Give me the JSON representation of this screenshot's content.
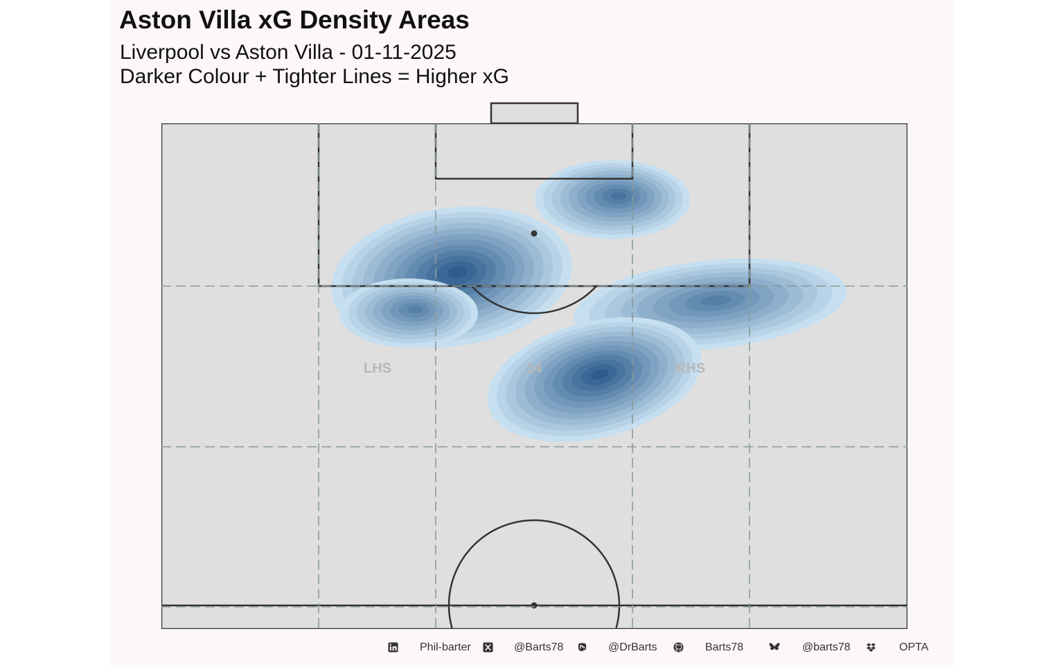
{
  "chart_data": {
    "type": "heatmap",
    "title": "Aston Villa xG Density Areas",
    "subtitle_lines": [
      "Liverpool vs Aston Villa - 01-11-2025",
      "Darker Colour + Tighter Lines = Higher xG"
    ],
    "zone_labels": [
      "LHS",
      "14",
      "RHS"
    ],
    "colors": {
      "pitch": "#dfdfdf",
      "background": "#fdf7f7",
      "lines": "#333333",
      "zone_lines": "#8a9a9a",
      "density_light": "#c6dff0",
      "density_dark": "#2c5b8c"
    },
    "density_clusters": [
      {
        "area": "left of penalty spot, edge of box",
        "intensity": "high"
      },
      {
        "area": "six-yard box, right of centre",
        "intensity": "medium"
      },
      {
        "area": "right channel outside box",
        "intensity": "medium"
      },
      {
        "area": "centre, just outside the D",
        "intensity": "high"
      }
    ]
  },
  "footer": {
    "linkedin": "Phil-barter",
    "x": "@Barts78",
    "mastodon": "@DrBarts",
    "github": "Barts78",
    "bluesky": "@barts78",
    "source": "OPTA"
  },
  "icons": [
    "linkedin-icon",
    "x-icon",
    "mastodon-icon",
    "github-icon",
    "bluesky-icon",
    "dropbox-icon"
  ]
}
